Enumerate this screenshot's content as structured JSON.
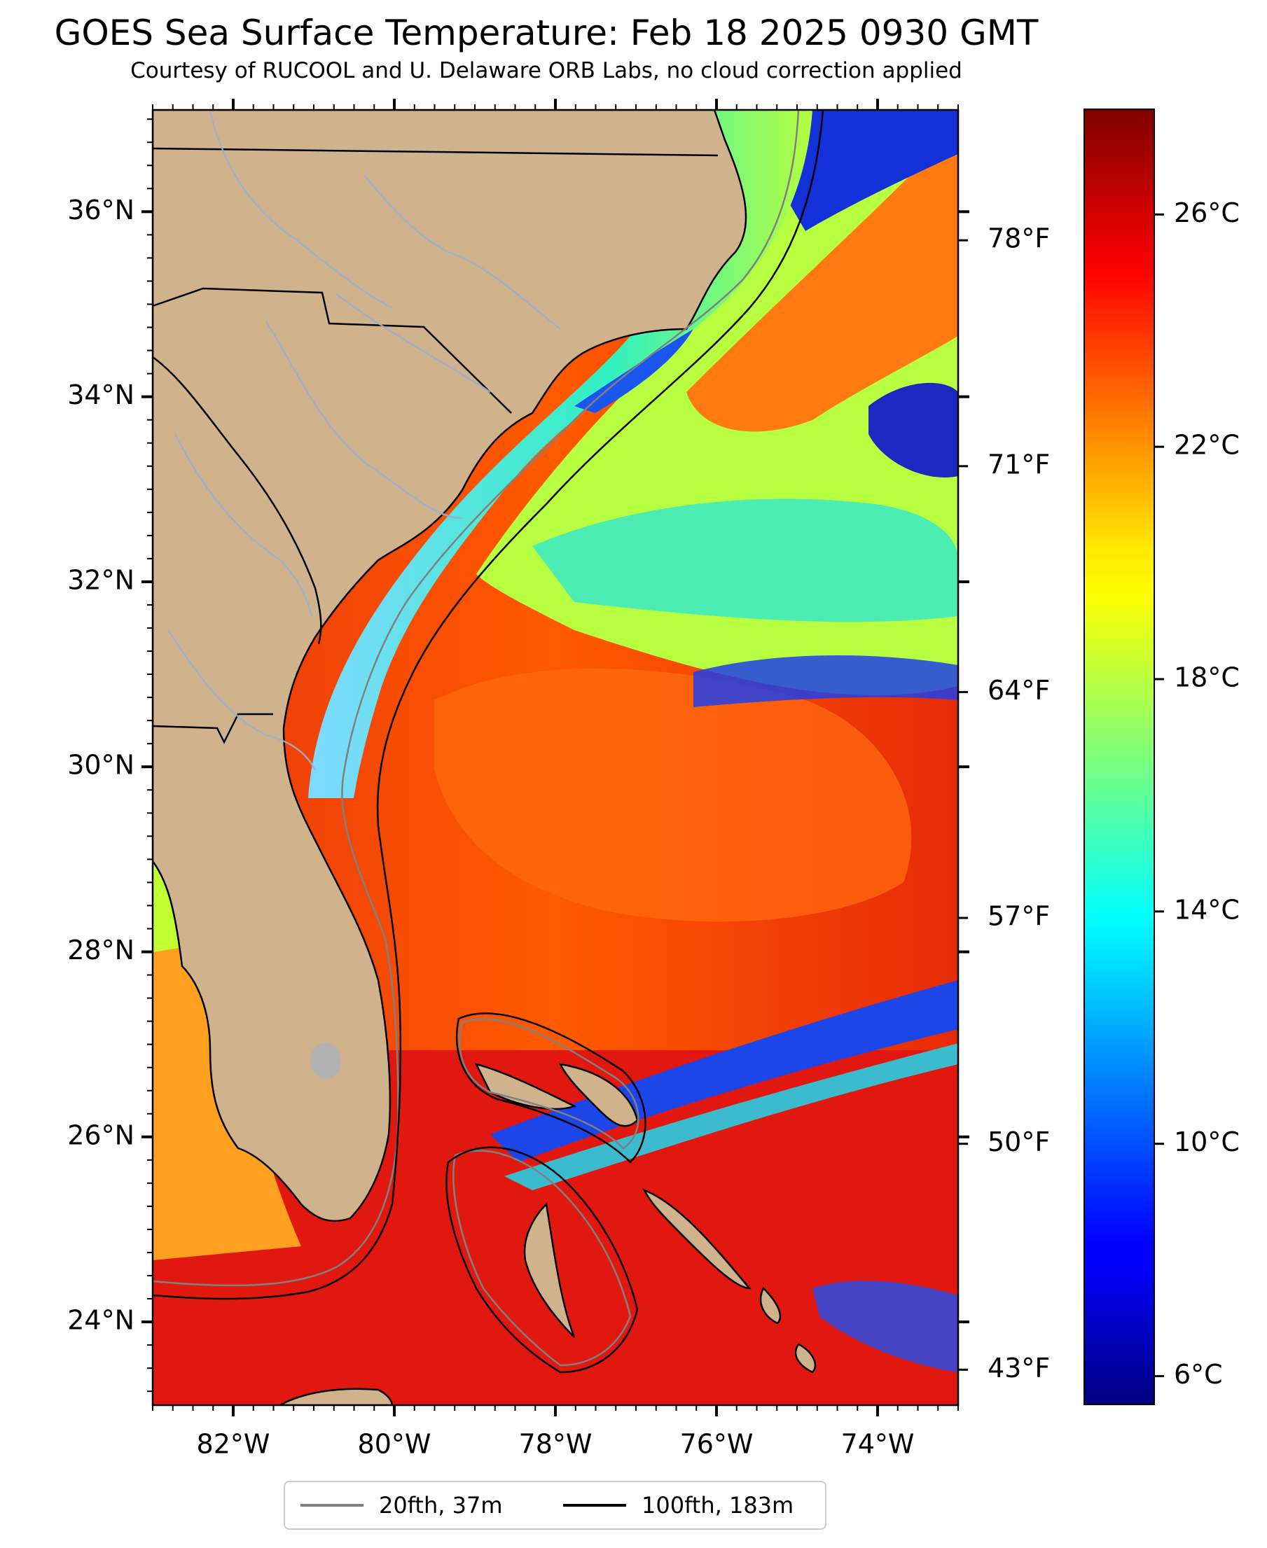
{
  "title": "GOES Sea Surface Temperature: Feb 18 2025 0930 GMT",
  "subtitle": "Courtesy of RUCOOL and U. Delaware ORB Labs, no cloud correction applied",
  "map": {
    "lat_range": [
      23.1,
      37.1
    ],
    "lon_range": [
      -83,
      -73
    ],
    "lat_ticks": [
      {
        "value": 24,
        "label": "24°N"
      },
      {
        "value": 26,
        "label": "26°N"
      },
      {
        "value": 28,
        "label": "28°N"
      },
      {
        "value": 30,
        "label": "30°N"
      },
      {
        "value": 32,
        "label": "32°N"
      },
      {
        "value": 34,
        "label": "34°N"
      },
      {
        "value": 36,
        "label": "36°N"
      }
    ],
    "lon_ticks": [
      {
        "value": -82,
        "label": "82°W"
      },
      {
        "value": -80,
        "label": "80°W"
      },
      {
        "value": -78,
        "label": "78°W"
      },
      {
        "value": -76,
        "label": "76°W"
      },
      {
        "value": -74,
        "label": "74°W"
      }
    ],
    "colors": {
      "land": "#d0b38c",
      "rivers": "#9ab0d0",
      "borders": "#000000"
    }
  },
  "fahrenheit_ticks": [
    {
      "value": 43,
      "label": "43°F"
    },
    {
      "value": 50,
      "label": "50°F"
    },
    {
      "value": 57,
      "label": "57°F"
    },
    {
      "value": 64,
      "label": "64°F"
    },
    {
      "value": 71,
      "label": "71°F"
    },
    {
      "value": 78,
      "label": "78°F"
    }
  ],
  "colorbar": {
    "colormap": "jet",
    "range_c": [
      5.5,
      27.8
    ],
    "ticks": [
      {
        "value": 6,
        "label": "6°C"
      },
      {
        "value": 10,
        "label": "10°C"
      },
      {
        "value": 14,
        "label": "14°C"
      },
      {
        "value": 18,
        "label": "18°C"
      },
      {
        "value": 22,
        "label": "22°C"
      },
      {
        "value": 26,
        "label": "26°C"
      }
    ]
  },
  "legend": {
    "items": [
      {
        "label": "20fth, 37m",
        "color": "#808080"
      },
      {
        "label": "100fth, 183m",
        "color": "#000000"
      }
    ]
  }
}
